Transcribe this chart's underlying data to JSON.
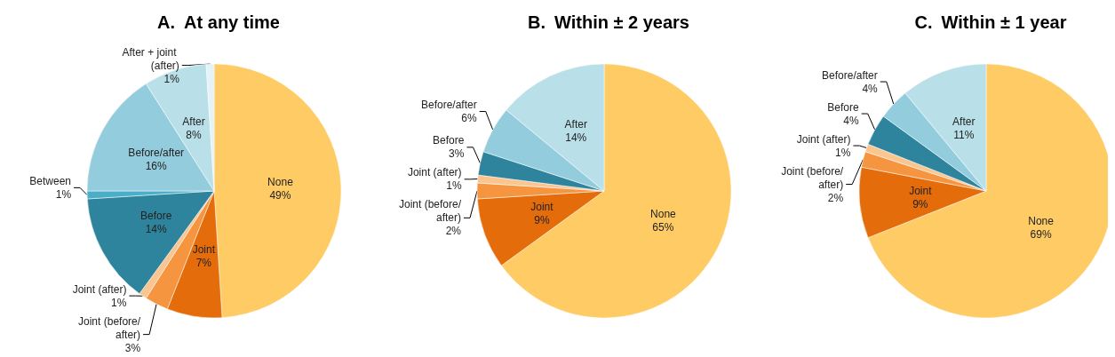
{
  "chart_data": [
    {
      "type": "pie",
      "title": "A. At any time",
      "categories": [
        "None",
        "Joint",
        "Joint (before/after)",
        "Joint (after)",
        "Before",
        "Between",
        "Before/after",
        "After",
        "After + joint (after)"
      ],
      "values": [
        49,
        7,
        3,
        1,
        14,
        1,
        16,
        8,
        1
      ],
      "value_labels": [
        "49%",
        "7%",
        "3%",
        "1%",
        "14%",
        "1%",
        "16%",
        "8%",
        "1%"
      ],
      "colors": [
        "#fecb65",
        "#e46c0a",
        "#f5953f",
        "#fbc590",
        "#2e849c",
        "#4aaec8",
        "#93ccdd",
        "#b9dfe8",
        "#e6f3f6"
      ],
      "legend": false
    },
    {
      "type": "pie",
      "title": "B. Within ± 2 years",
      "categories": [
        "None",
        "Joint",
        "Joint (before/after)",
        "Joint (after)",
        "Before",
        "Before/after",
        "After"
      ],
      "values": [
        65,
        9,
        2,
        1,
        3,
        6,
        14
      ],
      "value_labels": [
        "65%",
        "9%",
        "2%",
        "1%",
        "3%",
        "6%",
        "14%"
      ],
      "colors": [
        "#fecb65",
        "#e46c0a",
        "#f5953f",
        "#fbc590",
        "#2e849c",
        "#93ccdd",
        "#b9dfe8"
      ],
      "legend": false
    },
    {
      "type": "pie",
      "title": "C. Within ± 1 year",
      "categories": [
        "None",
        "Joint",
        "Joint (before/after)",
        "Joint (after)",
        "Before",
        "Before/after",
        "After"
      ],
      "values": [
        69,
        9,
        2,
        1,
        4,
        4,
        11
      ],
      "value_labels": [
        "69%",
        "9%",
        "2%",
        "1%",
        "4%",
        "4%",
        "11%"
      ],
      "colors": [
        "#fecb65",
        "#e46c0a",
        "#f5953f",
        "#fbc590",
        "#2e849c",
        "#93ccdd",
        "#b9dfe8"
      ],
      "legend": false
    }
  ]
}
